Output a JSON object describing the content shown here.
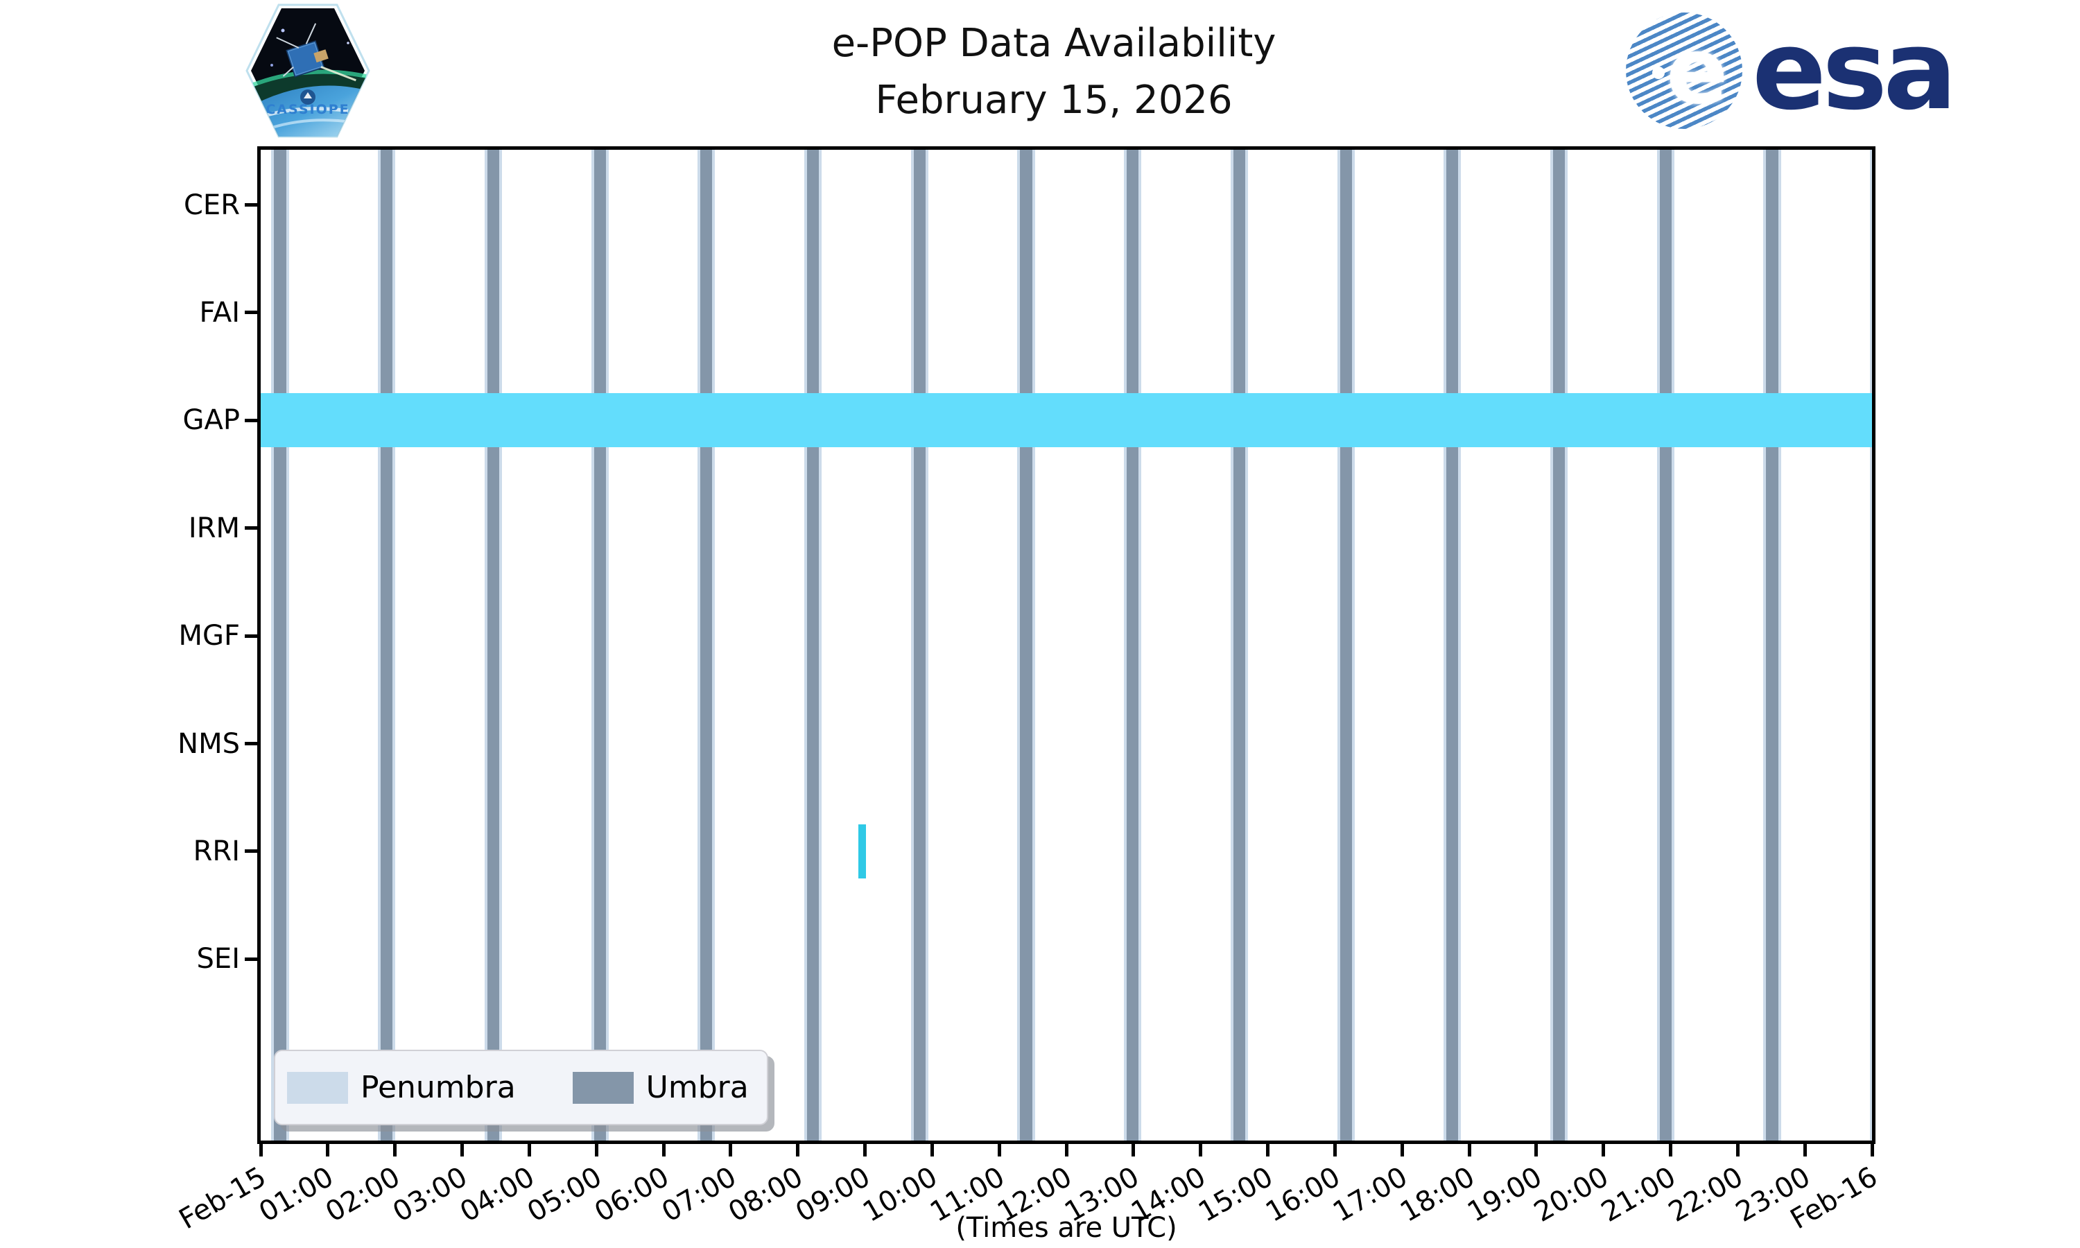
{
  "header": {
    "title": "e-POP Data Availability",
    "subtitle": "February 15, 2026",
    "mission_patch_text": "CASSIOPE",
    "esa_wordmark": "esa",
    "esa_emblem_glyph": "e"
  },
  "chart_data": {
    "type": "timeline",
    "title": "e-POP Data Availability",
    "subtitle": "February 15, 2026",
    "y_categories": [
      "CER",
      "FAI",
      "GAP",
      "IRM",
      "MGF",
      "NMS",
      "RRI",
      "SEI"
    ],
    "x_axis": {
      "range_hours": [
        0,
        24
      ],
      "tick_labels": [
        "Feb-15",
        "01:00",
        "02:00",
        "03:00",
        "04:00",
        "05:00",
        "06:00",
        "07:00",
        "08:00",
        "09:00",
        "10:00",
        "11:00",
        "12:00",
        "13:00",
        "14:00",
        "15:00",
        "16:00",
        "17:00",
        "18:00",
        "19:00",
        "20:00",
        "21:00",
        "22:00",
        "23:00",
        "Feb-16"
      ],
      "caption": "(Times are UTC)"
    },
    "eclipse_bands": {
      "first_center_hour": 0.29,
      "period_hours": 1.5873,
      "count": 16,
      "umbra_halfwidth_hours": 0.088,
      "penumbra_extra_hours": 0.042
    },
    "availability_bands": [
      {
        "instrument": "GAP",
        "start_hour": 0.0,
        "end_hour": 24.0,
        "color": "#63ddfc"
      },
      {
        "instrument": "RRI",
        "start_hour": 8.9,
        "end_hour": 9.02,
        "color": "#2fc9e6"
      }
    ],
    "legend": {
      "items": [
        {
          "label": "Penumbra",
          "color": "#ccdbea"
        },
        {
          "label": "Umbra",
          "color": "#8496a9"
        }
      ]
    },
    "colors": {
      "umbra": "#8496a9",
      "penumbra": "#ccdbea",
      "frame": "#000000",
      "background": "#ffffff"
    }
  }
}
